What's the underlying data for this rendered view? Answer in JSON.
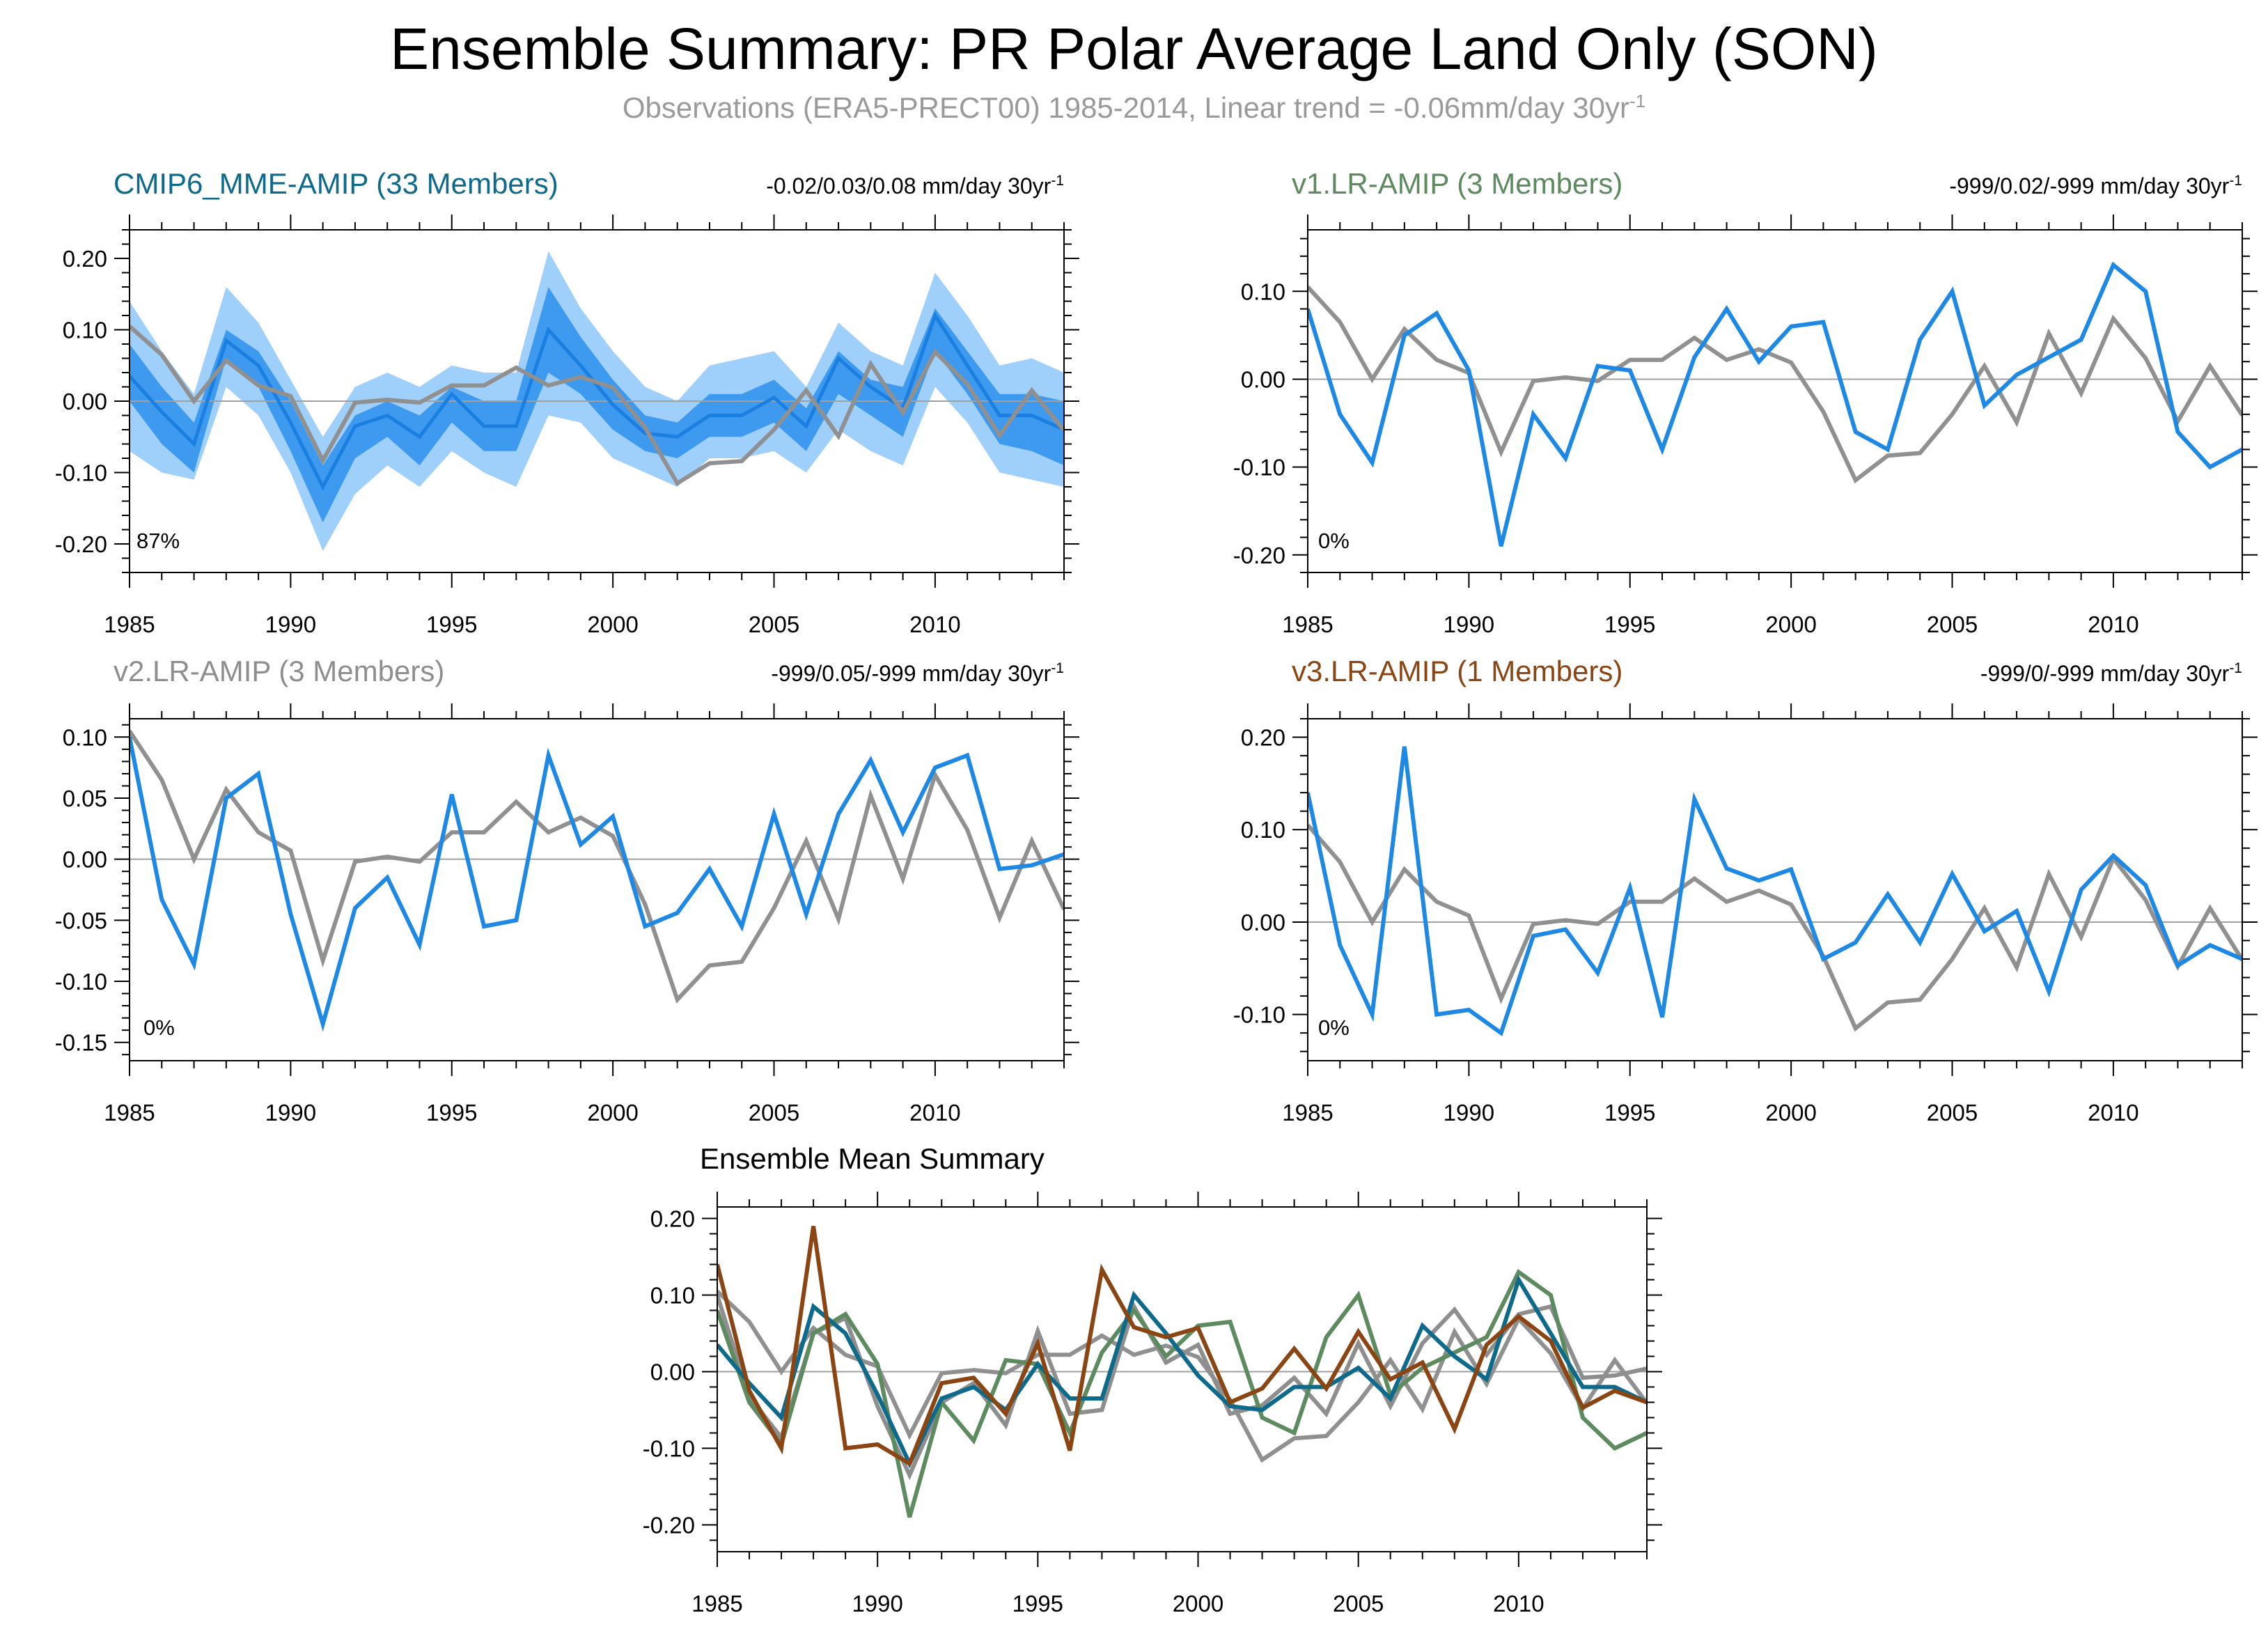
{
  "title": "Ensemble Summary: PR Polar Average Land Only (SON)",
  "subtitle": {
    "text": "Observations (ERA5-PRECT00) 1985-2014, Linear trend = -0.06mm/day 30yr",
    "superscript": "-1"
  },
  "colors": {
    "obs": "#909090",
    "model_line": "#1e88e5",
    "band_outer": "#9fd0fb",
    "band_inner": "#3d9aee",
    "band_mean": "#1a7fe0",
    "cmip6": "#0e6a8a",
    "v1": "#5d8a5f",
    "v2": "#8e8e8e",
    "v3": "#8b4513",
    "frame": "#000000",
    "zero_line": "#a0a0a0"
  },
  "chart_data": [
    {
      "id": "cmip6",
      "type": "area",
      "title": "CMIP6_MME-AMIP (33 Members)",
      "title_color": "#0e6a8a",
      "trend_text": "-0.02/0.03/0.08 mm/day 30yr",
      "trend_sup": "-1",
      "percent": "87%",
      "x": [
        1985,
        1986,
        1987,
        1988,
        1989,
        1990,
        1991,
        1992,
        1993,
        1994,
        1995,
        1996,
        1997,
        1998,
        1999,
        2000,
        2001,
        2002,
        2003,
        2004,
        2005,
        2006,
        2007,
        2008,
        2009,
        2010,
        2011,
        2012,
        2013,
        2014
      ],
      "xlim": [
        1985,
        2014
      ],
      "xticks": [
        1985,
        1990,
        1995,
        2000,
        2005,
        2010
      ],
      "ylim": [
        -0.24,
        0.24
      ],
      "yticks": [
        "0.20",
        "0.10",
        "0.00",
        "-0.10",
        "-0.20"
      ],
      "ytick_values": [
        0.2,
        0.1,
        0.0,
        -0.1,
        -0.2
      ],
      "bands": {
        "outer_upper": [
          0.14,
          0.07,
          0.01,
          0.16,
          0.11,
          0.03,
          -0.05,
          0.02,
          0.04,
          0.02,
          0.05,
          0.04,
          0.04,
          0.21,
          0.13,
          0.07,
          0.02,
          0.0,
          0.05,
          0.06,
          0.07,
          0.02,
          0.11,
          0.07,
          0.05,
          0.18,
          0.12,
          0.05,
          0.06,
          0.04
        ],
        "inner_upper": [
          0.08,
          0.02,
          -0.03,
          0.1,
          0.07,
          0.0,
          -0.09,
          -0.02,
          0.0,
          -0.02,
          0.02,
          0.0,
          0.0,
          0.16,
          0.09,
          0.03,
          -0.02,
          -0.03,
          0.01,
          0.01,
          0.03,
          -0.01,
          0.07,
          0.03,
          0.02,
          0.13,
          0.07,
          0.01,
          0.01,
          0.0
        ],
        "mean": [
          0.035,
          -0.015,
          -0.06,
          0.085,
          0.05,
          -0.03,
          -0.12,
          -0.035,
          -0.02,
          -0.05,
          0.01,
          -0.035,
          -0.035,
          0.1,
          0.05,
          -0.005,
          -0.045,
          -0.05,
          -0.02,
          -0.02,
          0.005,
          -0.035,
          0.06,
          0.02,
          -0.01,
          0.12,
          0.05,
          -0.02,
          -0.02,
          -0.04
        ],
        "inner_lower": [
          0.0,
          -0.06,
          -0.1,
          0.06,
          0.02,
          -0.07,
          -0.17,
          -0.08,
          -0.05,
          -0.09,
          -0.03,
          -0.07,
          -0.07,
          0.04,
          0.01,
          -0.04,
          -0.07,
          -0.08,
          -0.05,
          -0.05,
          -0.03,
          -0.07,
          0.01,
          -0.02,
          -0.05,
          0.07,
          0.01,
          -0.06,
          -0.07,
          -0.09
        ],
        "outer_lower": [
          -0.07,
          -0.1,
          -0.11,
          0.02,
          -0.02,
          -0.1,
          -0.21,
          -0.13,
          -0.09,
          -0.12,
          -0.07,
          -0.1,
          -0.12,
          -0.02,
          -0.03,
          -0.08,
          -0.1,
          -0.12,
          -0.08,
          -0.08,
          -0.07,
          -0.1,
          -0.04,
          -0.07,
          -0.09,
          0.02,
          -0.03,
          -0.1,
          -0.11,
          -0.12
        ]
      },
      "series": [
        {
          "name": "Observations",
          "color": "#909090",
          "values": [
            0.105,
            0.065,
            0.0,
            0.057,
            0.022,
            0.007,
            -0.083,
            -0.002,
            0.002,
            -0.002,
            0.022,
            0.022,
            0.047,
            0.022,
            0.034,
            0.019,
            -0.037,
            -0.115,
            -0.087,
            -0.084,
            -0.04,
            0.015,
            -0.049,
            0.052,
            -0.016,
            0.069,
            0.024,
            -0.048,
            0.015,
            -0.041
          ]
        }
      ]
    },
    {
      "id": "v1",
      "type": "line",
      "title": "v1.LR-AMIP (3 Members)",
      "title_color": "#5d8a5f",
      "trend_text": "-999/0.02/-999 mm/day 30yr",
      "trend_sup": "-1",
      "percent": "0%",
      "x": [
        1985,
        1986,
        1987,
        1988,
        1989,
        1990,
        1991,
        1992,
        1993,
        1994,
        1995,
        1996,
        1997,
        1998,
        1999,
        2000,
        2001,
        2002,
        2003,
        2004,
        2005,
        2006,
        2007,
        2008,
        2009,
        2010,
        2011,
        2012,
        2013,
        2014
      ],
      "xlim": [
        1985,
        2014
      ],
      "xticks": [
        1985,
        1990,
        1995,
        2000,
        2005,
        2010
      ],
      "ylim": [
        -0.22,
        0.17
      ],
      "yticks": [
        "0.10",
        "0.00",
        "-0.10",
        "-0.20"
      ],
      "ytick_values": [
        0.1,
        0.0,
        -0.1,
        -0.2
      ],
      "series": [
        {
          "name": "Observations",
          "color": "#909090",
          "values": [
            0.105,
            0.065,
            0.0,
            0.057,
            0.022,
            0.007,
            -0.083,
            -0.002,
            0.002,
            -0.002,
            0.022,
            0.022,
            0.047,
            0.022,
            0.034,
            0.019,
            -0.037,
            -0.115,
            -0.087,
            -0.084,
            -0.04,
            0.015,
            -0.049,
            0.052,
            -0.016,
            0.069,
            0.024,
            -0.048,
            0.015,
            -0.041
          ]
        },
        {
          "name": "v1.LR-AMIP",
          "color": "#1e88e5",
          "values": [
            0.08,
            -0.04,
            -0.095,
            0.05,
            0.075,
            0.01,
            -0.19,
            -0.04,
            -0.09,
            0.015,
            0.01,
            -0.08,
            0.025,
            0.08,
            0.02,
            0.06,
            0.065,
            -0.06,
            -0.08,
            0.045,
            0.1,
            -0.03,
            0.005,
            0.025,
            0.045,
            0.13,
            0.1,
            -0.06,
            -0.1,
            -0.08
          ]
        }
      ]
    },
    {
      "id": "v2",
      "type": "line",
      "title": "v2.LR-AMIP (3 Members)",
      "title_color": "#8e8e8e",
      "trend_text": "-999/0.05/-999 mm/day 30yr",
      "trend_sup": "-1",
      "percent": "0%",
      "x": [
        1985,
        1986,
        1987,
        1988,
        1989,
        1990,
        1991,
        1992,
        1993,
        1994,
        1995,
        1996,
        1997,
        1998,
        1999,
        2000,
        2001,
        2002,
        2003,
        2004,
        2005,
        2006,
        2007,
        2008,
        2009,
        2010,
        2011,
        2012,
        2013,
        2014
      ],
      "xlim": [
        1985,
        2014
      ],
      "xticks": [
        1985,
        1990,
        1995,
        2000,
        2005,
        2010
      ],
      "ylim": [
        -0.165,
        0.115
      ],
      "yticks": [
        "0.10",
        "0.05",
        "0.00",
        "-0.05",
        "-0.10",
        "-0.15"
      ],
      "ytick_values": [
        0.1,
        0.05,
        0.0,
        -0.05,
        -0.1,
        -0.15
      ],
      "series": [
        {
          "name": "Observations",
          "color": "#909090",
          "values": [
            0.105,
            0.065,
            0.0,
            0.057,
            0.022,
            0.007,
            -0.083,
            -0.002,
            0.002,
            -0.002,
            0.022,
            0.022,
            0.047,
            0.022,
            0.034,
            0.019,
            -0.037,
            -0.115,
            -0.087,
            -0.084,
            -0.04,
            0.015,
            -0.049,
            0.052,
            -0.016,
            0.069,
            0.024,
            -0.048,
            0.015,
            -0.041
          ]
        },
        {
          "name": "v2.LR-AMIP",
          "color": "#1e88e5",
          "values": [
            0.1,
            -0.033,
            -0.086,
            0.05,
            0.07,
            -0.045,
            -0.135,
            -0.04,
            -0.015,
            -0.07,
            0.053,
            -0.055,
            -0.05,
            0.085,
            0.012,
            0.035,
            -0.055,
            -0.044,
            -0.008,
            -0.055,
            0.037,
            -0.045,
            0.037,
            0.081,
            0.022,
            0.075,
            0.085,
            -0.008,
            -0.005,
            0.004
          ]
        }
      ]
    },
    {
      "id": "v3",
      "type": "line",
      "title": "v3.LR-AMIP (1 Members)",
      "title_color": "#8b4513",
      "trend_text": "-999/0/-999 mm/day 30yr",
      "trend_sup": "-1",
      "percent": "0%",
      "x": [
        1985,
        1986,
        1987,
        1988,
        1989,
        1990,
        1991,
        1992,
        1993,
        1994,
        1995,
        1996,
        1997,
        1998,
        1999,
        2000,
        2001,
        2002,
        2003,
        2004,
        2005,
        2006,
        2007,
        2008,
        2009,
        2010,
        2011,
        2012,
        2013,
        2014
      ],
      "xlim": [
        1985,
        2014
      ],
      "xticks": [
        1985,
        1990,
        1995,
        2000,
        2005,
        2010
      ],
      "ylim": [
        -0.15,
        0.22
      ],
      "yticks": [
        "0.20",
        "0.10",
        "0.00",
        "-0.10"
      ],
      "ytick_values": [
        0.2,
        0.1,
        0.0,
        -0.1
      ],
      "series": [
        {
          "name": "Observations",
          "color": "#909090",
          "values": [
            0.105,
            0.065,
            0.0,
            0.057,
            0.022,
            0.007,
            -0.083,
            -0.002,
            0.002,
            -0.002,
            0.022,
            0.022,
            0.047,
            0.022,
            0.034,
            0.019,
            -0.037,
            -0.115,
            -0.087,
            -0.084,
            -0.04,
            0.015,
            -0.049,
            0.052,
            -0.016,
            0.069,
            0.024,
            -0.048,
            0.015,
            -0.041
          ]
        },
        {
          "name": "v3.LR-AMIP",
          "color": "#1e88e5",
          "values": [
            0.14,
            -0.025,
            -0.1,
            0.19,
            -0.1,
            -0.095,
            -0.12,
            -0.015,
            -0.008,
            -0.055,
            0.037,
            -0.103,
            0.133,
            0.058,
            0.045,
            0.057,
            -0.04,
            -0.022,
            0.03,
            -0.022,
            0.052,
            -0.01,
            0.012,
            -0.075,
            0.035,
            0.072,
            0.04,
            -0.047,
            -0.025,
            -0.04
          ]
        }
      ]
    },
    {
      "id": "summary",
      "type": "line",
      "title": "Ensemble Mean Summary",
      "title_color": "#000000",
      "x": [
        1985,
        1986,
        1987,
        1988,
        1989,
        1990,
        1991,
        1992,
        1993,
        1994,
        1995,
        1996,
        1997,
        1998,
        1999,
        2000,
        2001,
        2002,
        2003,
        2004,
        2005,
        2006,
        2007,
        2008,
        2009,
        2010,
        2011,
        2012,
        2013,
        2014
      ],
      "xlim": [
        1985,
        2014
      ],
      "xticks": [
        1985,
        1990,
        1995,
        2000,
        2005,
        2010
      ],
      "ylim": [
        -0.235,
        0.215
      ],
      "yticks": [
        "0.20",
        "0.10",
        "0.00",
        "-0.10",
        "-0.20"
      ],
      "ytick_values": [
        0.2,
        0.1,
        0.0,
        -0.1,
        -0.2
      ],
      "series": [
        {
          "name": "Observations",
          "color": "#909090",
          "values": [
            0.105,
            0.065,
            0.0,
            0.057,
            0.022,
            0.007,
            -0.083,
            -0.002,
            0.002,
            -0.002,
            0.022,
            0.022,
            0.047,
            0.022,
            0.034,
            0.019,
            -0.037,
            -0.115,
            -0.087,
            -0.084,
            -0.04,
            0.015,
            -0.049,
            0.052,
            -0.016,
            0.069,
            0.024,
            -0.048,
            0.015,
            -0.041
          ]
        },
        {
          "name": "v2.LR-AMIP",
          "color": "#8e8e8e",
          "values": [
            0.1,
            -0.033,
            -0.086,
            0.05,
            0.07,
            -0.045,
            -0.135,
            -0.04,
            -0.015,
            -0.07,
            0.053,
            -0.055,
            -0.05,
            0.085,
            0.012,
            0.035,
            -0.055,
            -0.044,
            -0.008,
            -0.055,
            0.037,
            -0.045,
            0.037,
            0.081,
            0.022,
            0.075,
            0.085,
            -0.008,
            -0.005,
            0.004
          ]
        },
        {
          "name": "v1.LR-AMIP",
          "color": "#5d8a5f",
          "values": [
            0.08,
            -0.04,
            -0.095,
            0.05,
            0.075,
            0.01,
            -0.19,
            -0.04,
            -0.09,
            0.015,
            0.01,
            -0.08,
            0.025,
            0.08,
            0.02,
            0.06,
            0.065,
            -0.06,
            -0.08,
            0.045,
            0.1,
            -0.03,
            0.005,
            0.025,
            0.045,
            0.13,
            0.1,
            -0.06,
            -0.1,
            -0.08
          ]
        },
        {
          "name": "CMIP6_MME-AMIP",
          "color": "#0e6a8a",
          "values": [
            0.035,
            -0.015,
            -0.06,
            0.085,
            0.05,
            -0.03,
            -0.12,
            -0.035,
            -0.02,
            -0.05,
            0.01,
            -0.035,
            -0.035,
            0.1,
            0.05,
            -0.005,
            -0.045,
            -0.05,
            -0.02,
            -0.02,
            0.005,
            -0.035,
            0.06,
            0.02,
            -0.01,
            0.12,
            0.05,
            -0.02,
            -0.02,
            -0.04
          ]
        },
        {
          "name": "v3.LR-AMIP",
          "color": "#8b4513",
          "values": [
            0.14,
            -0.025,
            -0.1,
            0.19,
            -0.1,
            -0.095,
            -0.12,
            -0.015,
            -0.008,
            -0.055,
            0.037,
            -0.103,
            0.133,
            0.058,
            0.045,
            0.057,
            -0.04,
            -0.022,
            0.03,
            -0.022,
            0.052,
            -0.01,
            0.012,
            -0.075,
            0.035,
            0.072,
            0.04,
            -0.047,
            -0.025,
            -0.04
          ]
        }
      ]
    }
  ]
}
